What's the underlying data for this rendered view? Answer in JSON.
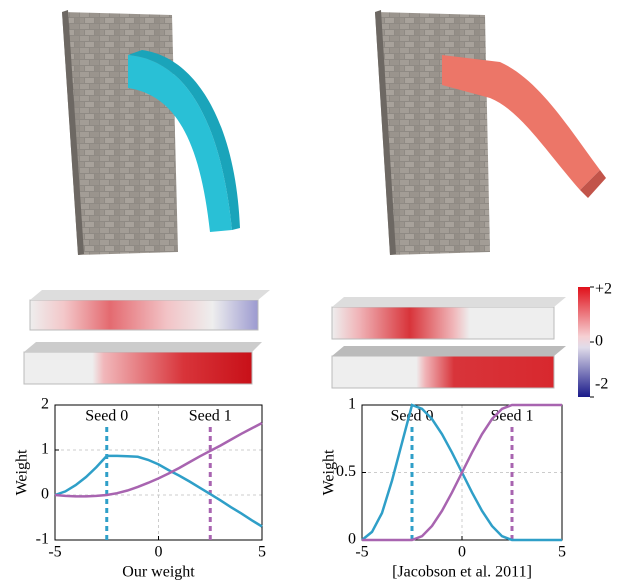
{
  "colorbar": {
    "ticks": [
      {
        "value": 2,
        "label": "+2"
      },
      0,
      -2
    ],
    "lim": [
      -2,
      2
    ]
  },
  "chart_data": [
    {
      "type": "line",
      "xlabel": "Our weight",
      "ylabel": "Weight",
      "x": [
        -5,
        -4.5,
        -4,
        -3.5,
        -3,
        -2.5,
        -2,
        -1.5,
        -1,
        -0.5,
        0,
        0.5,
        1,
        1.5,
        2,
        2.5,
        3,
        3.5,
        4,
        4.5,
        5
      ],
      "series": [
        {
          "color": "#2f9fc8",
          "values": [
            0,
            0.08,
            0.22,
            0.4,
            0.62,
            0.87,
            0.87,
            0.86,
            0.85,
            0.78,
            0.68,
            0.55,
            0.43,
            0.3,
            0.16,
            0.02,
            -0.12,
            -0.27,
            -0.41,
            -0.56,
            -0.7
          ]
        },
        {
          "color": "#a864b0",
          "values": [
            0,
            -0.02,
            -0.03,
            -0.03,
            -0.02,
            0,
            0.04,
            0.1,
            0.18,
            0.27,
            0.37,
            0.48,
            0.6,
            0.73,
            0.86,
            0.98,
            1.1,
            1.23,
            1.36,
            1.48,
            1.6
          ]
        }
      ],
      "seeds": [
        {
          "label": "Seed 0",
          "x": -2.5,
          "color": "#2f9fc8"
        },
        {
          "label": "Seed 1",
          "x": 2.5,
          "color": "#a864b0"
        }
      ],
      "xlim": [
        -5,
        5
      ],
      "xticks": [
        -5,
        0,
        5
      ],
      "ylim": [
        -1,
        2
      ],
      "yticks": [
        -1,
        0,
        1,
        2
      ],
      "grid": true
    },
    {
      "type": "line",
      "xlabel": "[Jacobson et al. 2011]",
      "ylabel": "Weight",
      "x": [
        -5,
        -4.5,
        -4,
        -3.5,
        -3,
        -2.5,
        -2,
        -1.5,
        -1,
        -0.5,
        0,
        0.5,
        1,
        1.5,
        2,
        2.5,
        3,
        3.5,
        4,
        4.5,
        5
      ],
      "series": [
        {
          "color": "#2f9fc8",
          "values": [
            0,
            0.06,
            0.2,
            0.44,
            0.72,
            1,
            0.972,
            0.896,
            0.784,
            0.648,
            0.5,
            0.352,
            0.216,
            0.104,
            0.028,
            0,
            0,
            0,
            0,
            0,
            0
          ]
        },
        {
          "color": "#a864b0",
          "values": [
            0,
            0,
            0,
            0,
            0,
            0,
            0.028,
            0.104,
            0.216,
            0.352,
            0.5,
            0.648,
            0.784,
            0.896,
            0.972,
            1,
            1,
            1,
            1,
            1,
            1
          ]
        }
      ],
      "seeds": [
        {
          "label": "Seed 0",
          "x": -2.5,
          "color": "#2f9fc8"
        },
        {
          "label": "Seed 1",
          "x": 2.5,
          "color": "#a864b0"
        }
      ],
      "xlim": [
        -5,
        5
      ],
      "xticks": [
        -5,
        0,
        5
      ],
      "ylim": [
        0,
        1
      ],
      "yticks": [
        0,
        0.5,
        1
      ],
      "grid": true
    }
  ]
}
